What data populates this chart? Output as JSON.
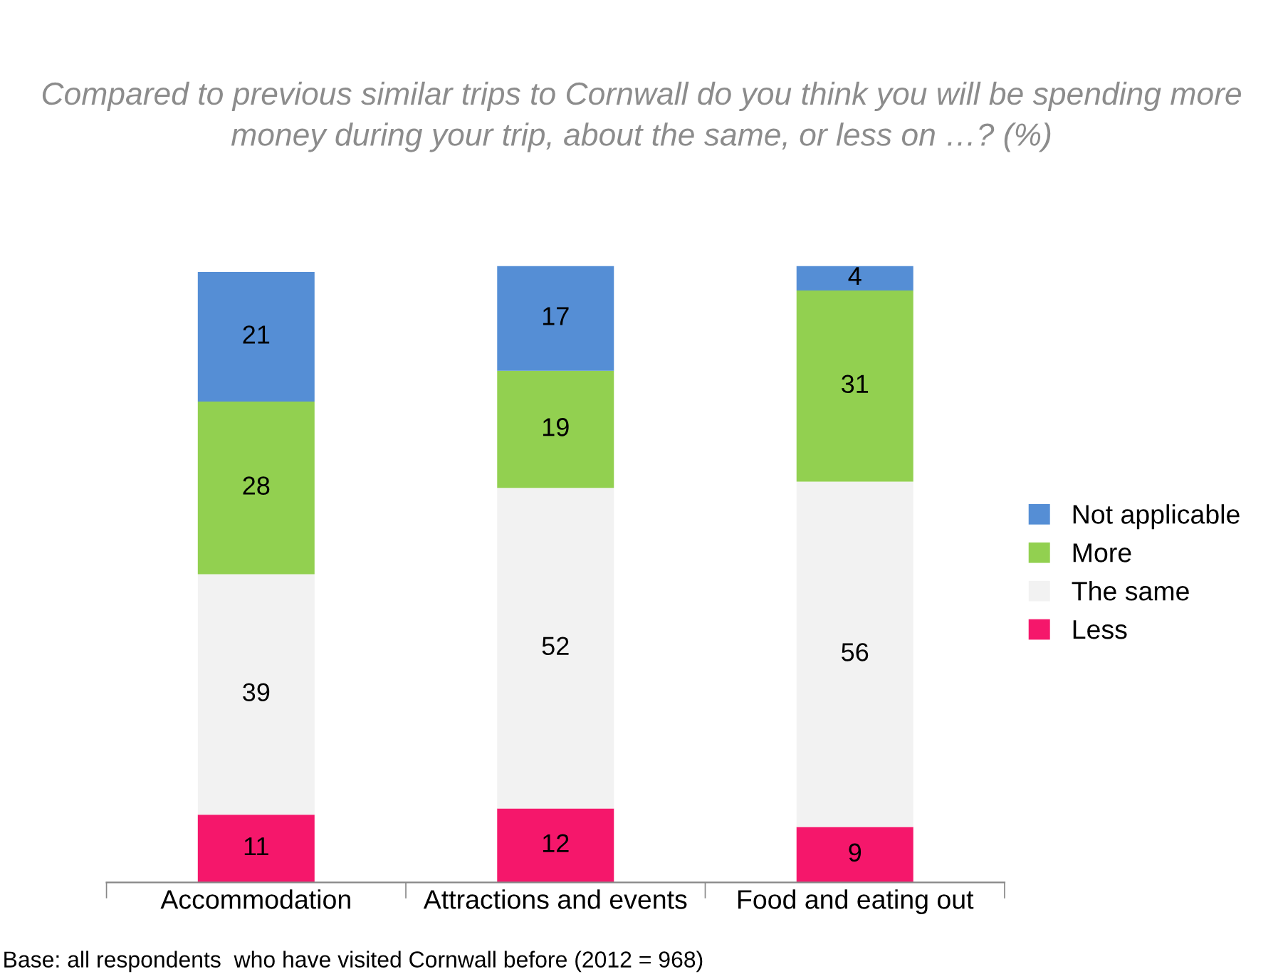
{
  "chart_data": {
    "type": "bar",
    "stacked": true,
    "title": "Compared to previous similar trips to Cornwall do you think you will be spending more money during your trip, about the same, or less on …? (%)",
    "categories": [
      "Accommodation",
      "Attractions and events",
      "Food and eating out"
    ],
    "series": [
      {
        "name": "Less",
        "color": "#f5176b",
        "values": [
          11,
          12,
          9
        ]
      },
      {
        "name": "The same",
        "color": "#f2f2f2",
        "values": [
          39,
          52,
          56
        ]
      },
      {
        "name": "More",
        "color": "#92d050",
        "values": [
          28,
          19,
          31
        ]
      },
      {
        "name": "Not applicable",
        "color": "#558ed5",
        "values": [
          21,
          17,
          4
        ]
      }
    ],
    "data_labels": true,
    "legend": "right",
    "grid": false,
    "annotations": [
      "Base: all respondents  who have visited Cornwall before (2012 = 968)"
    ]
  }
}
